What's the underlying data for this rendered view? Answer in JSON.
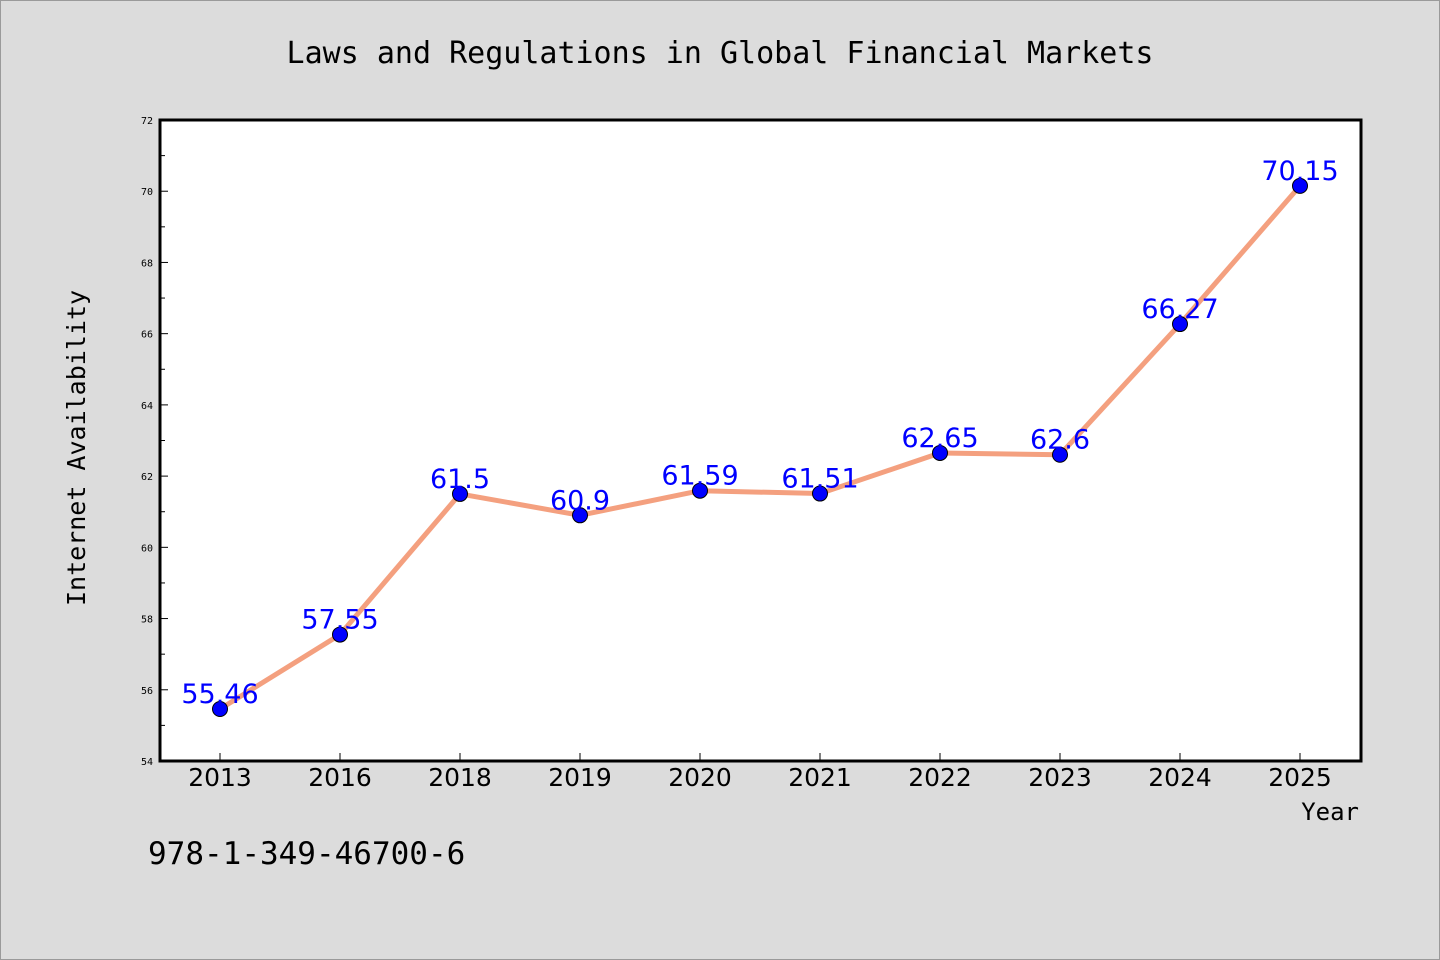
{
  "chart_data": {
    "type": "line",
    "title": "Laws and Regulations in Global Financial Markets",
    "xlabel": "Year",
    "ylabel": "Internet Availability",
    "categories": [
      "2013",
      "2016",
      "2018",
      "2019",
      "2020",
      "2021",
      "2022",
      "2023",
      "2024",
      "2025"
    ],
    "series": [
      {
        "values": [
          55.46,
          57.55,
          61.5,
          60.9,
          61.59,
          61.51,
          62.65,
          62.6,
          66.27,
          70.15
        ],
        "data_labels": [
          "55.46",
          "57.55",
          "61.5",
          "60.9",
          "61.59",
          "61.51",
          "62.65",
          "62.6",
          "66.27",
          "70.15"
        ],
        "line_color": "#f4a07f",
        "marker_color": "#0000ff"
      }
    ],
    "ylim": [
      54,
      72
    ],
    "yticks": [
      "54",
      "56",
      "58",
      "60",
      "62",
      "64",
      "66",
      "68",
      "70",
      "72"
    ],
    "grid": false,
    "legend": "none"
  },
  "annotation": {
    "isbn": "978-1-349-46700-6"
  }
}
